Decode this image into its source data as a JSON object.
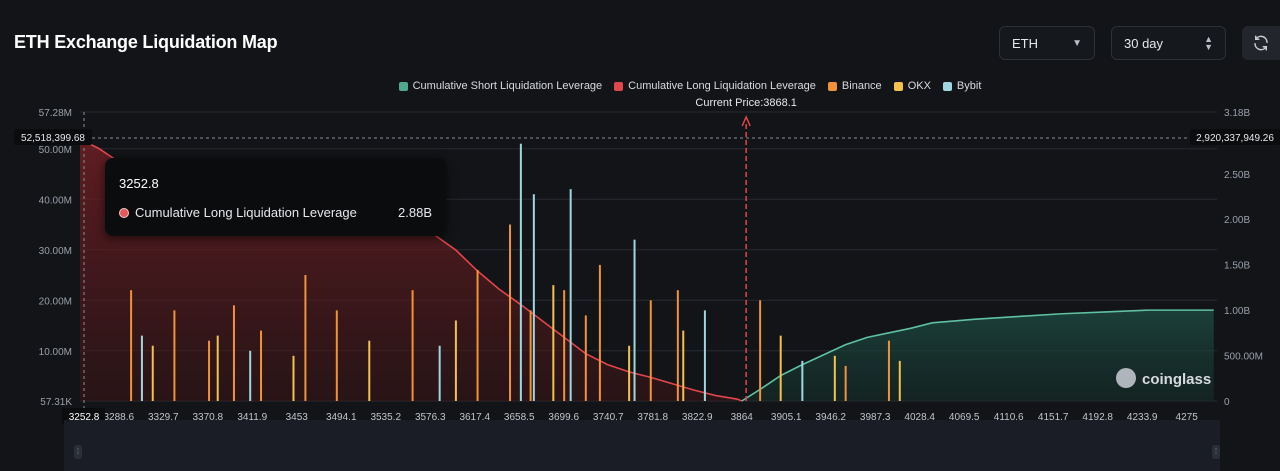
{
  "title": "ETH Exchange Liquidation Map",
  "controls": {
    "coin": "ETH",
    "range": "30 day",
    "refresh_icon": "refresh-icon"
  },
  "legend": [
    {
      "label": "Cumulative Short Liquidation Leverage",
      "color": "#4fa98a"
    },
    {
      "label": "Cumulative Long Liquidation Leverage",
      "color": "#e0474c"
    },
    {
      "label": "Binance",
      "color": "#f0923a"
    },
    {
      "label": "OKX",
      "color": "#f2c14e"
    },
    {
      "label": "Bybit",
      "color": "#9fd6e0"
    }
  ],
  "current_price_label": "Current Price:3868.1",
  "crosshair": {
    "left_value": "52,518,399.68",
    "right_value": "2,920,337,949.26",
    "x_value": "3252.8"
  },
  "tooltip": {
    "title": "3252.8",
    "series": "Cumulative Long Liquidation Leverage",
    "value": "2.88B"
  },
  "watermark": "coinglass",
  "chart_data": {
    "type": "bar",
    "title": "ETH Exchange Liquidation Map",
    "x_ticks": [
      "3252.8",
      "3288.6",
      "3329.7",
      "3370.8",
      "3411.9",
      "3453",
      "3494.1",
      "3535.2",
      "3576.3",
      "3617.4",
      "3658.5",
      "3699.6",
      "3740.7",
      "3781.8",
      "3822.9",
      "3864",
      "3905.1",
      "3946.2",
      "3987.3",
      "4028.4",
      "4069.5",
      "4110.6",
      "4151.7",
      "4192.8",
      "4233.9",
      "4275"
    ],
    "xlim": [
      3252.8,
      4303
    ],
    "y_left_ticks": [
      "57.28M",
      "50.00M",
      "40.00M",
      "30.00M",
      "20.00M",
      "10.00M",
      "57.31K"
    ],
    "y_left_tick_values": [
      57.28,
      50,
      40,
      30,
      20,
      10,
      0.057
    ],
    "ylim_left": [
      0.057,
      57.28
    ],
    "y_right_ticks": [
      "3.18B",
      "2.50B",
      "2.00B",
      "1.50B",
      "1.00B",
      "500.00M",
      "0"
    ],
    "y_right_tick_values": [
      3.18,
      2.5,
      2.0,
      1.5,
      1.0,
      0.5,
      0
    ],
    "ylim_right": [
      0,
      3.18
    ],
    "current_price": 3868.1,
    "series": [
      {
        "name": "Cumulative Long Liquidation Leverage",
        "axis": "right",
        "x": [
          3252.8,
          3270,
          3290,
          3310,
          3340,
          3380,
          3420,
          3460,
          3500,
          3540,
          3580,
          3600,
          3620,
          3640,
          3660,
          3680,
          3700,
          3720,
          3740,
          3760,
          3780,
          3800,
          3820,
          3840,
          3860,
          3864
        ],
        "values": [
          2.88,
          2.78,
          2.62,
          2.48,
          2.4,
          2.33,
          2.26,
          2.18,
          2.07,
          1.98,
          1.83,
          1.66,
          1.43,
          1.23,
          1.06,
          0.88,
          0.7,
          0.52,
          0.4,
          0.32,
          0.26,
          0.19,
          0.12,
          0.06,
          0.02,
          0.0
        ]
      },
      {
        "name": "Cumulative Short Liquidation Leverage",
        "axis": "right",
        "x": [
          3864,
          3880,
          3900,
          3920,
          3940,
          3960,
          3980,
          4000,
          4020,
          4040,
          4080,
          4120,
          4160,
          4200,
          4240,
          4275,
          4300
        ],
        "values": [
          0.0,
          0.12,
          0.28,
          0.4,
          0.51,
          0.62,
          0.7,
          0.75,
          0.8,
          0.86,
          0.9,
          0.93,
          0.96,
          0.98,
          1.0,
          1.0,
          1.0
        ]
      },
      {
        "name": "Binance",
        "axis": "left",
        "x": [
          3300,
          3340,
          3372,
          3395,
          3420,
          3461,
          3490,
          3560,
          3620,
          3650,
          3669,
          3700,
          3720,
          3733,
          3780,
          3805,
          3881,
          3960,
          4000
        ],
        "values": [
          22,
          18,
          12,
          19,
          14,
          25,
          18,
          22,
          26,
          35,
          18,
          22,
          17,
          27,
          20,
          22,
          20,
          7,
          12
        ]
      },
      {
        "name": "OKX",
        "axis": "left",
        "x": [
          3320,
          3380,
          3450,
          3520,
          3600,
          3690,
          3760,
          3810,
          3900,
          3950,
          4010
        ],
        "values": [
          11,
          13,
          9,
          12,
          16,
          23,
          11,
          14,
          13,
          9,
          8
        ]
      },
      {
        "name": "Bybit",
        "axis": "left",
        "x": [
          3310,
          3410,
          3585,
          3660,
          3672,
          3706,
          3765,
          3830,
          3920
        ],
        "values": [
          13,
          10,
          11,
          51,
          41,
          42,
          32,
          18,
          8
        ]
      }
    ]
  }
}
